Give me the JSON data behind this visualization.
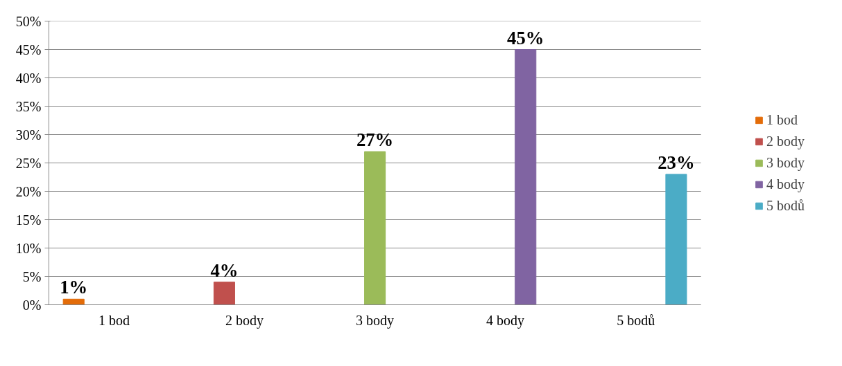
{
  "chart_data": {
    "type": "bar",
    "categories": [
      "1 bod",
      "2 body",
      "3 body",
      "4 body",
      "5 bodů"
    ],
    "series": [
      {
        "name": "1 bod",
        "color": "#e36c09",
        "values": [
          1,
          null,
          null,
          null,
          null
        ],
        "value_labels": [
          "1%",
          null,
          null,
          null,
          null
        ]
      },
      {
        "name": "2 body",
        "color": "#c0504d",
        "values": [
          null,
          4,
          null,
          null,
          null
        ],
        "value_labels": [
          null,
          "4%",
          null,
          null,
          null
        ]
      },
      {
        "name": "3 body",
        "color": "#9bbb59",
        "values": [
          null,
          null,
          27,
          null,
          null
        ],
        "value_labels": [
          null,
          null,
          "27%",
          null,
          null
        ]
      },
      {
        "name": "4 body",
        "color": "#8064a2",
        "values": [
          null,
          null,
          null,
          45,
          null
        ],
        "value_labels": [
          null,
          null,
          null,
          "45%",
          null
        ]
      },
      {
        "name": "5 bodů",
        "color": "#4bacc6",
        "values": [
          null,
          null,
          null,
          null,
          23
        ],
        "value_labels": [
          null,
          null,
          null,
          null,
          "23%"
        ]
      }
    ],
    "ylim": [
      0,
      50
    ],
    "yticks": [
      {
        "value": 0,
        "label": "0%"
      },
      {
        "value": 5,
        "label": "5%"
      },
      {
        "value": 10,
        "label": "10%"
      },
      {
        "value": 15,
        "label": "15%"
      },
      {
        "value": 20,
        "label": "20%"
      },
      {
        "value": 25,
        "label": "25%"
      },
      {
        "value": 30,
        "label": "30%"
      },
      {
        "value": 35,
        "label": "35%"
      },
      {
        "value": 40,
        "label": "40%"
      },
      {
        "value": 45,
        "label": "45%"
      },
      {
        "value": 50,
        "label": "50%"
      }
    ],
    "grid": "y",
    "legend": "right"
  }
}
